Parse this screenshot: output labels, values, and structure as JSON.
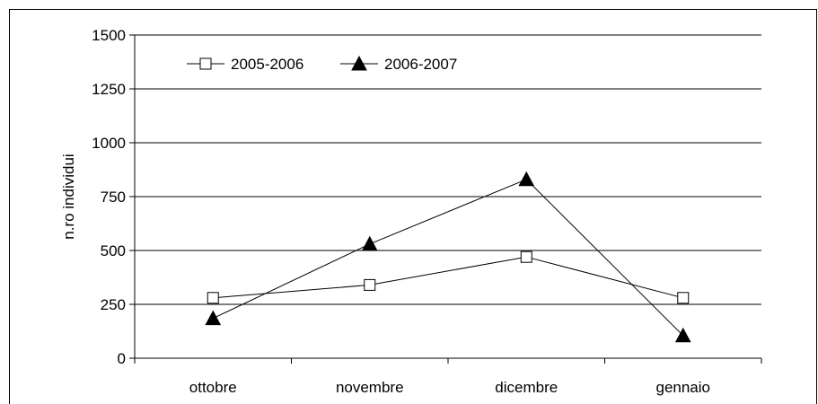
{
  "chart_data": {
    "type": "line",
    "categories": [
      "ottobre",
      "novembre",
      "dicembre",
      "gennaio"
    ],
    "series": [
      {
        "name": "2005-2006",
        "marker": "square-open",
        "values": [
          280,
          340,
          470,
          280
        ]
      },
      {
        "name": "2006-2007",
        "marker": "triangle-filled",
        "values": [
          185,
          530,
          830,
          105
        ]
      }
    ],
    "title": "",
    "xlabel": "",
    "ylabel": "n.ro individui",
    "ylim": [
      0,
      1500
    ],
    "yticks": [
      0,
      250,
      500,
      750,
      1000,
      1250,
      1500
    ],
    "grid": "horizontal",
    "legend": "top-left",
    "colors": {
      "line": "#000000",
      "grid": "#000000",
      "marker_open_fill": "#ffffff"
    }
  }
}
